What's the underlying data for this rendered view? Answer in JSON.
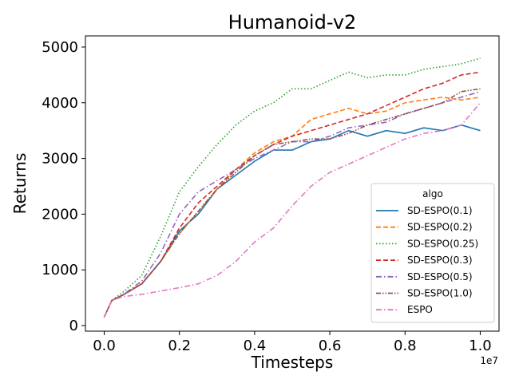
{
  "chart_data": {
    "type": "line",
    "title": "Humanoid-v2",
    "xlabel": "Timesteps",
    "ylabel": "Returns",
    "x_multiplier_label": "1e7",
    "xlim": [
      -0.05,
      1.05
    ],
    "ylim": [
      -100,
      5200
    ],
    "x_ticks": [
      0.0,
      0.2,
      0.4,
      0.6,
      0.8,
      1.0
    ],
    "x_tick_labels": [
      "0.0",
      "0.2",
      "0.4",
      "0.6",
      "0.8",
      "1.0"
    ],
    "y_ticks": [
      0,
      1000,
      2000,
      3000,
      4000,
      5000
    ],
    "y_tick_labels": [
      "0",
      "1000",
      "2000",
      "3000",
      "4000",
      "5000"
    ],
    "grid": false,
    "legend": {
      "title": "algo",
      "placement": "lower-right"
    },
    "series": [
      {
        "name": "SD-ESPO(0.1)",
        "color": "#1f77b4",
        "dash": "solid",
        "x": [
          0,
          0.02,
          0.05,
          0.1,
          0.15,
          0.2,
          0.25,
          0.3,
          0.35,
          0.4,
          0.45,
          0.5,
          0.55,
          0.6,
          0.65,
          0.7,
          0.75,
          0.8,
          0.85,
          0.9,
          0.95,
          1.0
        ],
        "y": [
          150,
          450,
          550,
          750,
          1150,
          1700,
          2000,
          2450,
          2700,
          2950,
          3150,
          3150,
          3300,
          3350,
          3500,
          3400,
          3500,
          3450,
          3550,
          3500,
          3600,
          3500
        ]
      },
      {
        "name": "SD-ESPO(0.2)",
        "color": "#ff7f0e",
        "dash": "dashed",
        "x": [
          0,
          0.02,
          0.05,
          0.1,
          0.15,
          0.2,
          0.25,
          0.3,
          0.35,
          0.4,
          0.45,
          0.5,
          0.55,
          0.6,
          0.65,
          0.7,
          0.75,
          0.8,
          0.85,
          0.9,
          0.95,
          1.0
        ],
        "y": [
          150,
          450,
          550,
          750,
          1150,
          1650,
          2050,
          2450,
          2800,
          3100,
          3300,
          3400,
          3700,
          3800,
          3900,
          3800,
          3850,
          4000,
          4050,
          4100,
          4050,
          4100
        ]
      },
      {
        "name": "SD-ESPO(0.25)",
        "color": "#2ca02c",
        "dash": "dotted",
        "x": [
          0,
          0.02,
          0.05,
          0.1,
          0.15,
          0.2,
          0.25,
          0.3,
          0.35,
          0.4,
          0.45,
          0.5,
          0.55,
          0.6,
          0.65,
          0.7,
          0.75,
          0.8,
          0.85,
          0.9,
          0.95,
          1.0
        ],
        "y": [
          150,
          450,
          600,
          900,
          1600,
          2400,
          2850,
          3250,
          3600,
          3850,
          4000,
          4250,
          4250,
          4400,
          4550,
          4450,
          4500,
          4500,
          4600,
          4650,
          4700,
          4800
        ]
      },
      {
        "name": "SD-ESPO(0.3)",
        "color": "#d62728",
        "dash": "dashed",
        "x": [
          0,
          0.02,
          0.05,
          0.1,
          0.15,
          0.2,
          0.25,
          0.3,
          0.35,
          0.4,
          0.45,
          0.5,
          0.55,
          0.6,
          0.65,
          0.7,
          0.75,
          0.8,
          0.85,
          0.9,
          0.95,
          1.0
        ],
        "y": [
          150,
          450,
          550,
          750,
          1150,
          1750,
          2200,
          2500,
          2800,
          3050,
          3250,
          3400,
          3500,
          3600,
          3700,
          3800,
          3950,
          4100,
          4250,
          4350,
          4500,
          4550
        ]
      },
      {
        "name": "SD-ESPO(0.5)",
        "color": "#9467bd",
        "dash": "dashdot",
        "x": [
          0,
          0.02,
          0.05,
          0.1,
          0.15,
          0.2,
          0.25,
          0.3,
          0.35,
          0.4,
          0.45,
          0.5,
          0.55,
          0.6,
          0.65,
          0.7,
          0.75,
          0.8,
          0.85,
          0.9,
          0.95,
          1.0
        ],
        "y": [
          150,
          450,
          550,
          800,
          1300,
          2000,
          2400,
          2600,
          2800,
          3000,
          3150,
          3300,
          3300,
          3400,
          3550,
          3600,
          3650,
          3800,
          3900,
          4000,
          4100,
          4200
        ]
      },
      {
        "name": "SD-ESPO(1.0)",
        "color": "#8c564b",
        "dash": "dashdotdot",
        "x": [
          0,
          0.02,
          0.05,
          0.1,
          0.15,
          0.2,
          0.25,
          0.3,
          0.35,
          0.4,
          0.45,
          0.5,
          0.55,
          0.6,
          0.65,
          0.7,
          0.75,
          0.8,
          0.85,
          0.9,
          0.95,
          1.0
        ],
        "y": [
          150,
          450,
          550,
          750,
          1150,
          1650,
          2050,
          2450,
          2750,
          3050,
          3250,
          3300,
          3350,
          3350,
          3450,
          3600,
          3700,
          3800,
          3900,
          4000,
          4200,
          4250
        ]
      },
      {
        "name": "ESPO",
        "color": "#e377c2",
        "dash": "dashdot",
        "x": [
          0,
          0.02,
          0.05,
          0.1,
          0.15,
          0.2,
          0.25,
          0.3,
          0.35,
          0.4,
          0.45,
          0.5,
          0.55,
          0.6,
          0.65,
          0.7,
          0.75,
          0.8,
          0.85,
          0.9,
          0.95,
          1.0
        ],
        "y": [
          150,
          450,
          520,
          560,
          620,
          680,
          750,
          900,
          1150,
          1500,
          1750,
          2150,
          2500,
          2750,
          2900,
          3050,
          3200,
          3350,
          3450,
          3500,
          3600,
          4000
        ]
      }
    ]
  }
}
